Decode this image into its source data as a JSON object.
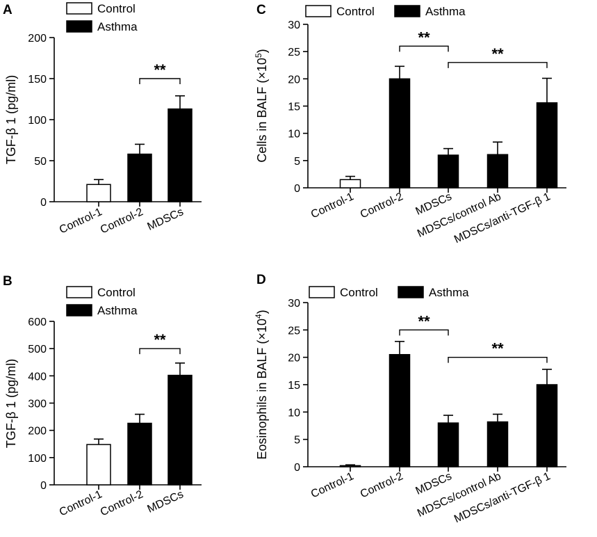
{
  "legend": {
    "control": "Control",
    "asthma": "Asthma"
  },
  "colors": {
    "control": "#ffffff",
    "asthma": "#000000",
    "stroke": "#000000"
  },
  "chart_data": [
    {
      "panel": "A",
      "type": "bar",
      "ylabel": "TGF-β 1 (pg/ml)",
      "ylim": [
        0,
        200
      ],
      "yticks": [
        0,
        50,
        100,
        150,
        200
      ],
      "categories": [
        "Control-1",
        "Control-2",
        "MDSCs"
      ],
      "groups": [
        "control",
        "asthma",
        "asthma"
      ],
      "values": [
        21,
        58,
        113
      ],
      "errors": [
        6,
        12,
        16
      ],
      "significance": [
        {
          "from": 1,
          "to": 2,
          "label": "**",
          "y": 150
        }
      ]
    },
    {
      "panel": "B",
      "type": "bar",
      "ylabel": "TGF-β 1 (pg/ml)",
      "ylim": [
        0,
        600
      ],
      "yticks": [
        0,
        100,
        200,
        300,
        400,
        500,
        600
      ],
      "categories": [
        "Control-1",
        "Control-2",
        "MDSCs"
      ],
      "groups": [
        "control",
        "asthma",
        "asthma"
      ],
      "values": [
        148,
        226,
        402
      ],
      "errors": [
        20,
        33,
        45
      ],
      "significance": [
        {
          "from": 1,
          "to": 2,
          "label": "**",
          "y": 500
        }
      ]
    },
    {
      "panel": "C",
      "type": "bar",
      "ylabel": "Cells in BALF (×10",
      "ylabel_sup": "5",
      "ylabel_end": ")",
      "ylim": [
        0,
        30
      ],
      "yticks": [
        0,
        5,
        10,
        15,
        20,
        25,
        30
      ],
      "categories": [
        "Control-1",
        "Control-2",
        "MDSCs",
        "MDSCs/control Ab",
        "MDSCs/anti-TGF-β 1"
      ],
      "groups": [
        "control",
        "asthma",
        "asthma",
        "asthma",
        "asthma"
      ],
      "values": [
        1.5,
        20,
        6,
        6.1,
        15.6
      ],
      "errors": [
        0.6,
        2.3,
        1.2,
        2.3,
        4.5
      ],
      "significance": [
        {
          "from": 1,
          "to": 2,
          "label": "**",
          "y": 26
        },
        {
          "from": 2,
          "to": 4,
          "label": "**",
          "y": 23
        }
      ]
    },
    {
      "panel": "D",
      "type": "bar",
      "ylabel": "Eosinophils in BALF (×10",
      "ylabel_sup": "4",
      "ylabel_end": ")",
      "ylim": [
        0,
        30
      ],
      "yticks": [
        0,
        5,
        10,
        15,
        20,
        25,
        30
      ],
      "categories": [
        "Control-1",
        "Control-2",
        "MDSCs",
        "MDSCs/control Ab",
        "MDSCs/anti-TGF-β 1"
      ],
      "groups": [
        "control",
        "asthma",
        "asthma",
        "asthma",
        "asthma"
      ],
      "values": [
        0.2,
        20.5,
        8,
        8.2,
        15
      ],
      "errors": [
        0.15,
        2.4,
        1.4,
        1.4,
        2.8
      ],
      "significance": [
        {
          "from": 1,
          "to": 2,
          "label": "**",
          "y": 25
        },
        {
          "from": 2,
          "to": 4,
          "label": "**",
          "y": 20
        }
      ]
    }
  ]
}
